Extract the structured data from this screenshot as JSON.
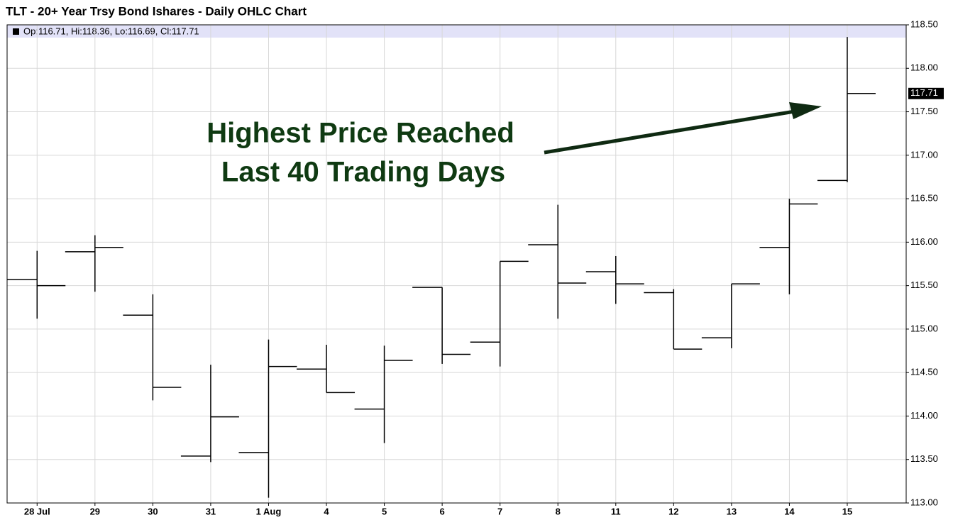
{
  "chart_data": {
    "type": "ohlc",
    "title": "TLT - 20+ Year Trsy Bond Ishares - Daily OHLC Chart",
    "info_text": "Op:116.71, Hi:118.36, Lo:116.69, Cl:117.71",
    "annotations": [
      "Highest Price Reached",
      "Last 40 Trading Days"
    ],
    "categories": [
      "28 Jul",
      "29",
      "30",
      "31",
      "1 Aug",
      "4",
      "5",
      "6",
      "7",
      "8",
      "11",
      "12",
      "13",
      "14",
      "15"
    ],
    "open": [
      115.57,
      115.89,
      115.16,
      113.54,
      113.58,
      114.54,
      114.08,
      115.48,
      114.85,
      115.97,
      115.66,
      115.42,
      114.9,
      115.94,
      116.71
    ],
    "high": [
      115.9,
      116.08,
      115.4,
      114.59,
      114.88,
      114.82,
      114.81,
      115.48,
      115.78,
      116.43,
      115.84,
      115.46,
      115.52,
      116.5,
      118.36
    ],
    "low": [
      115.12,
      115.43,
      114.18,
      113.47,
      113.06,
      114.27,
      113.69,
      114.6,
      114.57,
      115.12,
      115.29,
      114.77,
      114.78,
      115.4,
      116.69
    ],
    "close": [
      115.5,
      115.94,
      114.33,
      113.99,
      114.57,
      114.27,
      114.64,
      114.71,
      115.78,
      115.53,
      115.52,
      114.77,
      115.52,
      116.44,
      117.71
    ],
    "color": "#000000",
    "ylim": [
      113,
      118.5
    ],
    "yticks": [
      {
        "value": 113,
        "label": "113.00"
      },
      {
        "value": 113.5,
        "label": "113.50"
      },
      {
        "value": 114,
        "label": "114.00"
      },
      {
        "value": 114.5,
        "label": "114.50"
      },
      {
        "value": 115,
        "label": "115.00"
      },
      {
        "value": 115.5,
        "label": "115.50"
      },
      {
        "value": 116,
        "label": "116.00"
      },
      {
        "value": 116.5,
        "label": "116.50"
      },
      {
        "value": 117,
        "label": "117.00"
      },
      {
        "value": 117.5,
        "label": "117.50"
      },
      {
        "value": 118,
        "label": "118.00"
      },
      {
        "value": 118.5,
        "label": "118.50"
      }
    ],
    "grid": true
  }
}
